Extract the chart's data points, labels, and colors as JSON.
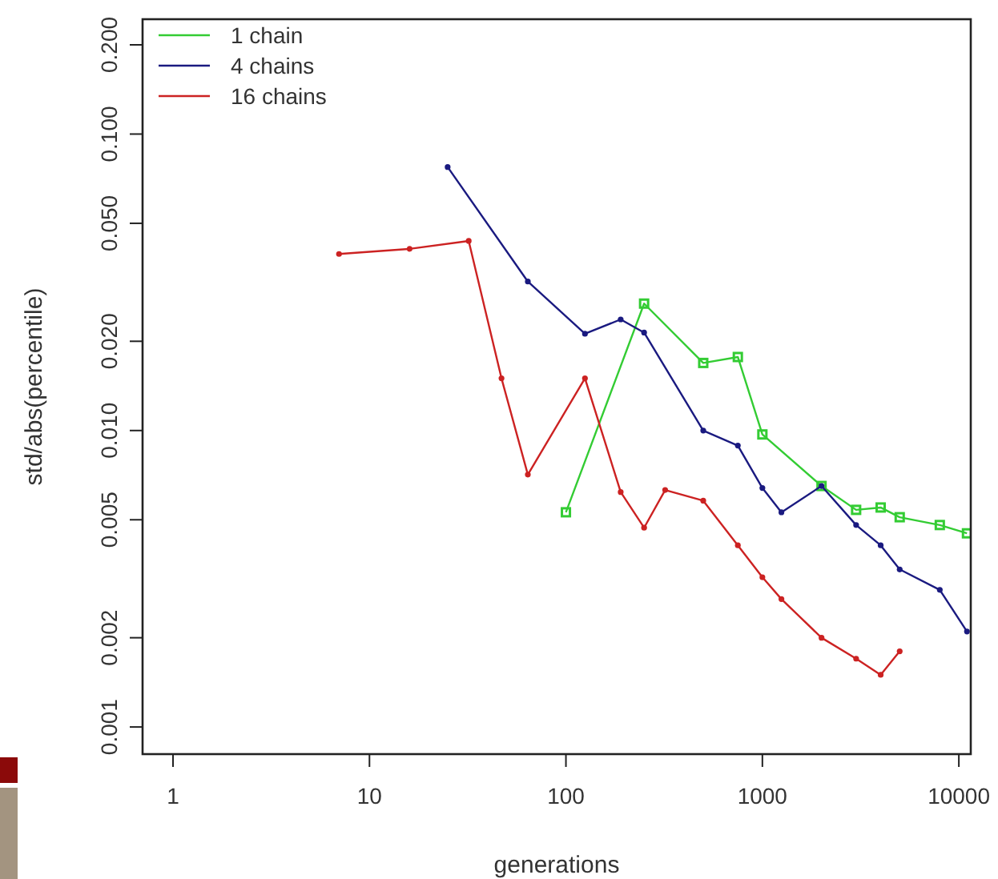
{
  "chart_data": {
    "type": "line",
    "xlabel": "generations",
    "ylabel": "std/abs(percentile)",
    "log": "xy",
    "legend": "top left",
    "grid": false,
    "xlim": [
      0.7,
      11500
    ],
    "xticks": [
      1,
      10,
      100,
      1000,
      10000
    ],
    "ylim": [
      0.00081,
      0.244
    ],
    "yticks": [
      0.001,
      0.002,
      0.005,
      {
        "value": 0.01,
        "label": "0.010"
      },
      {
        "value": 0.02,
        "label": "0.020"
      },
      {
        "value": 0.05,
        "label": "0.050"
      },
      {
        "value": 0.1,
        "label": "0.100"
      },
      {
        "value": 0.2,
        "label": "0.200"
      }
    ],
    "series": [
      {
        "name": "1 chain",
        "color": "#33cc33",
        "marker": "square",
        "x": [
          100,
          250,
          500,
          750,
          1000,
          2000,
          3000,
          4000,
          5000,
          8000,
          11000
        ],
        "values": [
          0.0053,
          0.0268,
          0.0169,
          0.0177,
          0.0097,
          0.0065,
          0.0054,
          0.0055,
          0.0051,
          0.0048,
          0.0045
        ]
      },
      {
        "name": "4 chains",
        "color": "#1a1a80",
        "marker": "circle",
        "x": [
          25,
          64,
          125,
          190,
          250,
          500,
          750,
          1000,
          1250,
          2000,
          3000,
          4000,
          5000,
          8000,
          11000
        ],
        "values": [
          0.0774,
          0.0318,
          0.0212,
          0.0237,
          0.0214,
          0.01,
          0.0089,
          0.0064,
          0.0053,
          0.0065,
          0.0048,
          0.0041,
          0.0034,
          0.0029,
          0.0021
        ]
      },
      {
        "name": "16 chains",
        "color": "#cc2222",
        "marker": "circle",
        "x": [
          7,
          16,
          32,
          47,
          64,
          125,
          190,
          250,
          320,
          500,
          750,
          1000,
          1250,
          2000,
          3000,
          4000,
          5000
        ],
        "values": [
          0.0394,
          0.041,
          0.0436,
          0.015,
          0.0071,
          0.015,
          0.0062,
          0.0047,
          0.0063,
          0.0058,
          0.0041,
          0.0032,
          0.0027,
          0.002,
          0.0017,
          0.0015,
          0.0018
        ]
      }
    ]
  }
}
